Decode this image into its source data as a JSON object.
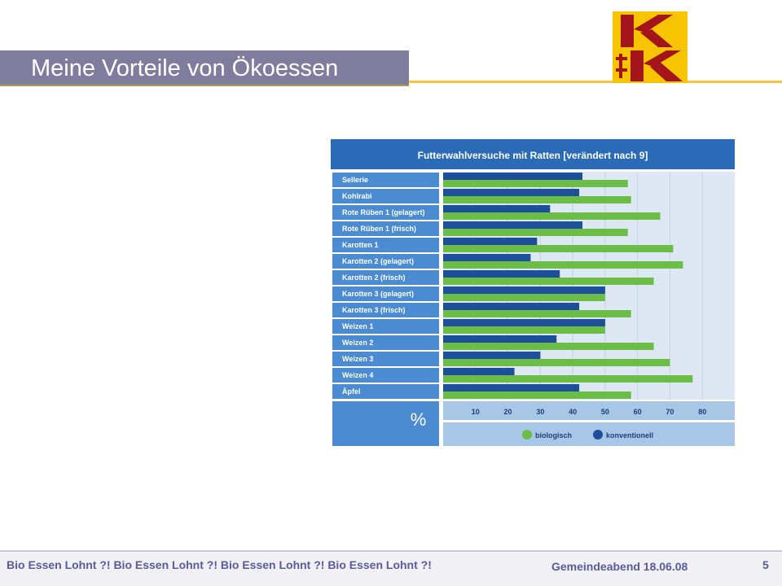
{
  "slide": {
    "title": "Meine Vorteile von Ökoessen",
    "footer_left": "Bio Essen Lohnt ?! Bio Essen Lohnt ?! Bio Essen Lohnt ?! Bio Essen Lohnt ?!",
    "footer_mid": "Gemeindeabend  18.06.08",
    "page_number": "5",
    "logo_text": "KK"
  },
  "colors": {
    "title_bar": "#7f7d9e",
    "accent_line": "#f5c542",
    "chart_header": "#2a6ab7",
    "label_bg": "#4a8bd1",
    "plot_bg": "#dde8f4",
    "axis_bg": "#a8c6e6",
    "biologisch": "#6cbd45",
    "konventionell": "#1d4f9a",
    "logo_yellow": "#f6c400",
    "logo_red": "#a3151b"
  },
  "chart_data": {
    "type": "bar",
    "orientation": "horizontal",
    "title": "Futterwahlversuche mit Ratten [verändert nach 9]",
    "axis_unit_label": "%",
    "xlim": [
      0,
      90
    ],
    "xticks": [
      10,
      20,
      30,
      40,
      50,
      60,
      70,
      80
    ],
    "grid": true,
    "legend_position": "bottom-right",
    "categories": [
      "Sellerie",
      "Kohlrabi",
      "Rote Rüben 1 (gelagert)",
      "Rote Rüben 1 (frisch)",
      "Karotten 1",
      "Karotten 2 (gelagert)",
      "Karotten 2 (frisch)",
      "Karotten 3 (gelagert)",
      "Karotten 3 (frisch)",
      "Weizen 1",
      "Weizen 2",
      "Weizen 3",
      "Weizen 4",
      "Äpfel"
    ],
    "series": [
      {
        "name": "konventionell",
        "values": [
          43,
          42,
          33,
          43,
          29,
          27,
          36,
          50,
          42,
          50,
          35,
          30,
          22,
          42
        ]
      },
      {
        "name": "biologisch",
        "values": [
          57,
          58,
          67,
          57,
          71,
          74,
          65,
          50,
          58,
          50,
          65,
          70,
          77,
          58
        ]
      }
    ]
  }
}
